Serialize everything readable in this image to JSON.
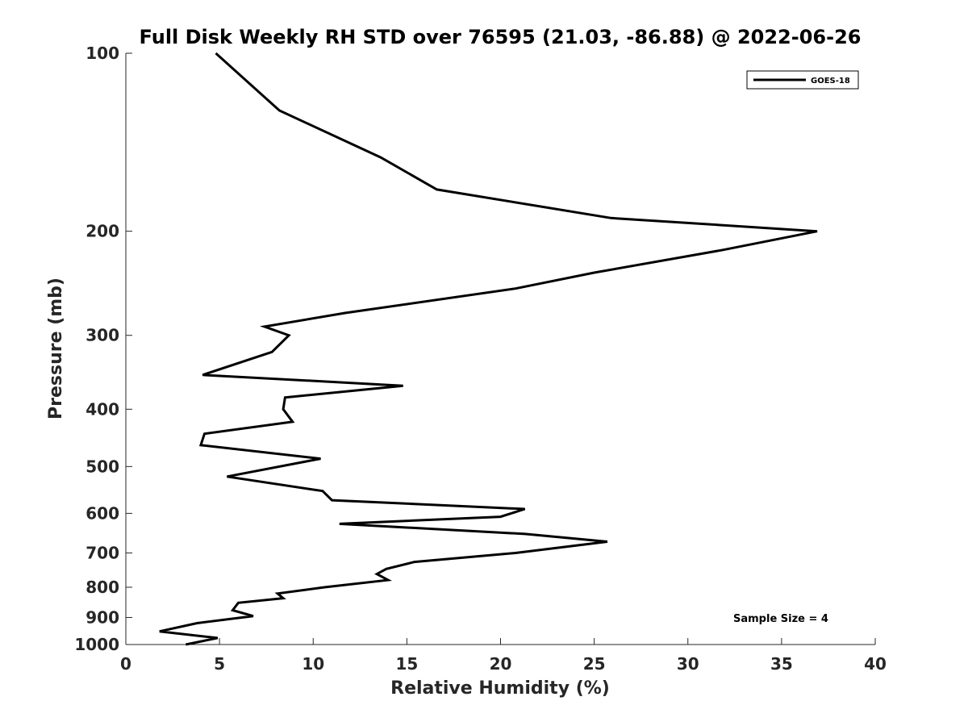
{
  "chart_data": {
    "type": "line",
    "title": "Full Disk Weekly RH STD over 76595 (21.03, -86.88) @ 2022-06-26",
    "xlabel": "Relative Humidity (%)",
    "ylabel": "Pressure (mb)",
    "xlim": [
      0,
      40
    ],
    "ylim": [
      100,
      1000
    ],
    "y_scale": "log",
    "y_reversed": true,
    "grid": false,
    "legend_position": "top-right",
    "x_ticks": [
      0,
      5,
      10,
      15,
      20,
      25,
      30,
      35,
      40
    ],
    "y_ticks": [
      100,
      200,
      300,
      400,
      500,
      600,
      700,
      800,
      900,
      1000
    ],
    "annotation": "Sample Size = 4",
    "series": [
      {
        "name": "GOES-18",
        "color": "#000000",
        "points": [
          [
            4.8,
            100
          ],
          [
            8.2,
            125
          ],
          [
            13.6,
            150
          ],
          [
            16.6,
            170
          ],
          [
            25.9,
            190
          ],
          [
            36.9,
            200
          ],
          [
            31.9,
            215
          ],
          [
            25.0,
            235
          ],
          [
            20.8,
            250
          ],
          [
            11.7,
            275
          ],
          [
            7.4,
            290
          ],
          [
            8.7,
            300
          ],
          [
            7.8,
            320
          ],
          [
            4.1,
            350
          ],
          [
            14.8,
            365
          ],
          [
            8.5,
            382
          ],
          [
            8.4,
            400
          ],
          [
            8.9,
            420
          ],
          [
            4.2,
            440
          ],
          [
            4.0,
            460
          ],
          [
            10.4,
            485
          ],
          [
            5.4,
            520
          ],
          [
            10.5,
            550
          ],
          [
            11.0,
            570
          ],
          [
            21.3,
            590
          ],
          [
            20.0,
            608
          ],
          [
            11.4,
            625
          ],
          [
            21.3,
            650
          ],
          [
            25.7,
            670
          ],
          [
            20.8,
            700
          ],
          [
            15.4,
            725
          ],
          [
            13.9,
            745
          ],
          [
            13.4,
            760
          ],
          [
            14.0,
            778
          ],
          [
            10.6,
            800
          ],
          [
            8.1,
            820
          ],
          [
            8.4,
            835
          ],
          [
            6.0,
            850
          ],
          [
            5.7,
            875
          ],
          [
            6.8,
            895
          ],
          [
            3.8,
            920
          ],
          [
            1.8,
            950
          ],
          [
            4.9,
            975
          ],
          [
            3.2,
            1000
          ]
        ]
      }
    ]
  }
}
